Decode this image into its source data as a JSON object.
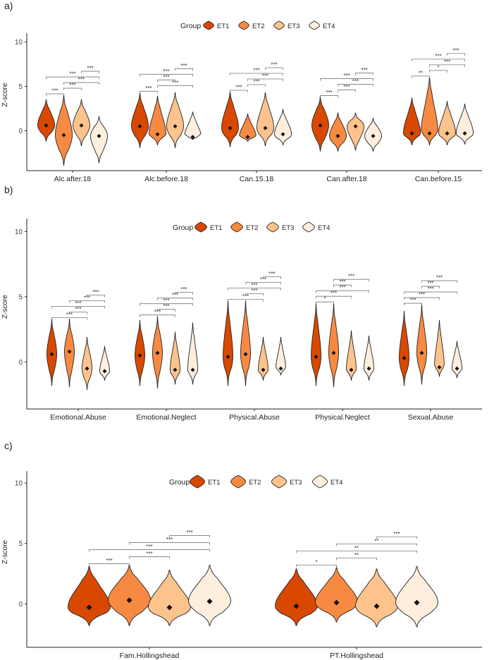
{
  "chart_data": [
    {
      "type": "violin",
      "panel": "a)",
      "legend_title": "Group",
      "groups": [
        "ET1",
        "ET2",
        "ET3",
        "ET4"
      ],
      "colors": {
        "ET1": "#d94801",
        "ET2": "#f78a42",
        "ET3": "#fdc38d",
        "ET4": "#fdeedd"
      },
      "ylabel": "Z-score",
      "yticks": [
        0,
        5,
        10
      ],
      "ylim": [
        -4.5,
        11
      ],
      "categories": [
        {
          "label": "Alc.after.18",
          "ranges": [
            [
              -1.2,
              3.5
            ],
            [
              -3.9,
              4.0
            ],
            [
              -1.7,
              3.5
            ],
            [
              -3.6,
              1.6
            ]
          ],
          "medians": [
            0.6,
            -0.5,
            0.6,
            -0.6
          ],
          "brackets": [
            {
              "a": 0,
              "b": 1,
              "sig": "***"
            },
            {
              "a": 1,
              "b": 2,
              "sig": "***"
            },
            {
              "a": 1,
              "b": 3,
              "sig": "***"
            },
            {
              "a": 0,
              "b": 3,
              "sig": "***"
            },
            {
              "a": 2,
              "b": 3,
              "sig": "***"
            }
          ]
        },
        {
          "label": "Alc.before.18",
          "ranges": [
            [
              -1.9,
              4.2
            ],
            [
              -1.6,
              3.9
            ],
            [
              -1.9,
              4.3
            ],
            [
              -1.0,
              2.1
            ]
          ],
          "medians": [
            0.5,
            -0.4,
            0.5,
            -0.7
          ],
          "brackets": [
            {
              "a": 0,
              "b": 1,
              "sig": "***"
            },
            {
              "a": 1,
              "b": 3,
              "sig": "***"
            },
            {
              "a": 1,
              "b": 2,
              "sig": "***"
            },
            {
              "a": 0,
              "b": 3,
              "sig": "***"
            },
            {
              "a": 2,
              "b": 3,
              "sig": "***"
            }
          ]
        },
        {
          "label": "Can.15.18",
          "ranges": [
            [
              -1.8,
              4.4
            ],
            [
              -1.2,
              1.9
            ],
            [
              -1.7,
              4.3
            ],
            [
              -1.6,
              2.4
            ]
          ],
          "medians": [
            0.3,
            -0.7,
            0.3,
            -0.4
          ],
          "brackets": [
            {
              "a": 0,
              "b": 1,
              "sig": "***"
            },
            {
              "a": 1,
              "b": 2,
              "sig": "***"
            },
            {
              "a": 1,
              "b": 3,
              "sig": "***"
            },
            {
              "a": 0,
              "b": 3,
              "sig": "***"
            },
            {
              "a": 2,
              "b": 3,
              "sig": "***"
            }
          ]
        },
        {
          "label": "Can.after.18",
          "ranges": [
            [
              -2.3,
              3.8
            ],
            [
              -2.3,
              2.0
            ],
            [
              -2.2,
              2.0
            ],
            [
              -2.3,
              1.4
            ]
          ],
          "medians": [
            0.6,
            -0.6,
            0.5,
            -0.6
          ],
          "brackets": [
            {
              "a": 0,
              "b": 1,
              "sig": "***"
            },
            {
              "a": 1,
              "b": 2,
              "sig": "***"
            },
            {
              "a": 1,
              "b": 3,
              "sig": "***"
            },
            {
              "a": 0,
              "b": 3,
              "sig": "***"
            },
            {
              "a": 2,
              "b": 3,
              "sig": "***"
            }
          ]
        },
        {
          "label": "Can.before.15",
          "ranges": [
            [
              -1.6,
              3.7
            ],
            [
              -1.6,
              6.0
            ],
            [
              -1.6,
              3.3
            ],
            [
              -1.5,
              3.0
            ]
          ],
          "medians": [
            -0.3,
            -0.3,
            -0.3,
            -0.3
          ],
          "brackets": [
            {
              "a": 0,
              "b": 1,
              "sig": "**"
            },
            {
              "a": 1,
              "b": 2,
              "sig": "*"
            },
            {
              "a": 1,
              "b": 3,
              "sig": "***"
            },
            {
              "a": 0,
              "b": 3,
              "sig": "***"
            },
            {
              "a": 2,
              "b": 3,
              "sig": "***"
            }
          ]
        }
      ]
    },
    {
      "type": "violin",
      "panel": "b)",
      "legend_title": "Group",
      "groups": [
        "ET1",
        "ET2",
        "ET3",
        "ET4"
      ],
      "colors": {
        "ET1": "#d94801",
        "ET2": "#f78a42",
        "ET3": "#fdc38d",
        "ET4": "#fdeedd"
      },
      "ylabel": "Z-score",
      "yticks": [
        0,
        5,
        10
      ],
      "ylim": [
        -3.6,
        11
      ],
      "categories": [
        {
          "label": "Emotional.Abuse",
          "ranges": [
            [
              -1.8,
              3.3
            ],
            [
              -1.9,
              3.3
            ],
            [
              -2.1,
              1.9
            ],
            [
              -1.4,
              1.2
            ]
          ],
          "medians": [
            0.6,
            0.8,
            -0.5,
            -0.7
          ],
          "brackets": [
            {
              "a": 0,
              "b": 2,
              "sig": "***"
            },
            {
              "a": 1,
              "b": 2,
              "sig": "***"
            },
            {
              "a": 0,
              "b": 3,
              "sig": "***"
            },
            {
              "a": 1,
              "b": 3,
              "sig": "***"
            },
            {
              "a": 2,
              "b": 3,
              "sig": "***"
            }
          ]
        },
        {
          "label": "Emotional.Neglect",
          "ranges": [
            [
              -1.8,
              3.2
            ],
            [
              -2.0,
              3.5
            ],
            [
              -1.7,
              2.3
            ],
            [
              -1.7,
              3.0
            ]
          ],
          "medians": [
            0.5,
            0.7,
            -0.6,
            -0.6
          ],
          "brackets": [
            {
              "a": 0,
              "b": 2,
              "sig": "***"
            },
            {
              "a": 1,
              "b": 2,
              "sig": "***"
            },
            {
              "a": 0,
              "b": 3,
              "sig": "***"
            },
            {
              "a": 1,
              "b": 3,
              "sig": "***"
            },
            {
              "a": 2,
              "b": 3,
              "sig": "***"
            }
          ]
        },
        {
          "label": "Physical.Abuse",
          "ranges": [
            [
              -1.8,
              4.7
            ],
            [
              -1.8,
              4.7
            ],
            [
              -1.4,
              1.9
            ],
            [
              -1.0,
              1.9
            ]
          ],
          "medians": [
            0.4,
            0.6,
            -0.6,
            -0.5
          ],
          "brackets": [
            {
              "a": 0,
              "b": 2,
              "sig": "***"
            },
            {
              "a": 1,
              "b": 2,
              "sig": "***"
            },
            {
              "a": 0,
              "b": 3,
              "sig": "***"
            },
            {
              "a": 1,
              "b": 3,
              "sig": "***"
            },
            {
              "a": 2,
              "b": 3,
              "sig": "***"
            }
          ]
        },
        {
          "label": "Physical.Neglect",
          "ranges": [
            [
              -1.8,
              4.5
            ],
            [
              -1.9,
              4.5
            ],
            [
              -1.4,
              2.4
            ],
            [
              -1.4,
              2.0
            ]
          ],
          "medians": [
            0.4,
            0.7,
            -0.6,
            -0.5
          ],
          "brackets": [
            {
              "a": 0,
              "b": 1,
              "sig": "*"
            },
            {
              "a": 0,
              "b": 2,
              "sig": "***"
            },
            {
              "a": 0,
              "b": 3,
              "sig": "***"
            },
            {
              "a": 1,
              "b": 2,
              "sig": "***"
            },
            {
              "a": 1,
              "b": 3,
              "sig": "***"
            }
          ]
        },
        {
          "label": "Sexual.Abuse",
          "ranges": [
            [
              -1.8,
              3.9
            ],
            [
              -1.7,
              4.4
            ],
            [
              -1.1,
              3.2
            ],
            [
              -1.2,
              1.6
            ]
          ],
          "medians": [
            0.3,
            0.7,
            -0.4,
            -0.5
          ],
          "brackets": [
            {
              "a": 0,
              "b": 1,
              "sig": "***"
            },
            {
              "a": 0,
              "b": 2,
              "sig": "***"
            },
            {
              "a": 0,
              "b": 3,
              "sig": "***"
            },
            {
              "a": 1,
              "b": 2,
              "sig": "***"
            },
            {
              "a": 1,
              "b": 3,
              "sig": "***"
            }
          ]
        }
      ]
    },
    {
      "type": "violin",
      "panel": "c)",
      "legend_title": "Group",
      "groups": [
        "ET1",
        "ET2",
        "ET3",
        "ET4"
      ],
      "colors": {
        "ET1": "#d94801",
        "ET2": "#f78a42",
        "ET3": "#fdc38d",
        "ET4": "#fdeedd"
      },
      "ylabel": "Z-score",
      "yticks": [
        0,
        5,
        10
      ],
      "ylim": [
        -3.6,
        11
      ],
      "categories": [
        {
          "label": "Fam.Hollingshead",
          "ranges": [
            [
              -1.8,
              3.1
            ],
            [
              -1.8,
              3.2
            ],
            [
              -1.8,
              2.8
            ],
            [
              -1.8,
              3.2
            ]
          ],
          "medians": [
            -0.3,
            0.3,
            -0.3,
            0.2
          ],
          "brackets": [
            {
              "a": 0,
              "b": 1,
              "sig": "***"
            },
            {
              "a": 1,
              "b": 2,
              "sig": "***"
            },
            {
              "a": 0,
              "b": 3,
              "sig": "***"
            },
            {
              "a": 1,
              "b": 3,
              "sig": "***"
            },
            {
              "a": 2,
              "b": 3,
              "sig": "***"
            }
          ]
        },
        {
          "label": "PT.Hollingshead",
          "ranges": [
            [
              -1.8,
              2.9
            ],
            [
              -1.5,
              3.0
            ],
            [
              -1.9,
              2.9
            ],
            [
              -1.9,
              3.1
            ]
          ],
          "medians": [
            -0.2,
            0.1,
            -0.2,
            0.1
          ],
          "brackets": [
            {
              "a": 0,
              "b": 1,
              "sig": "*"
            },
            {
              "a": 1,
              "b": 2,
              "sig": "**"
            },
            {
              "a": 0,
              "b": 3,
              "sig": "**"
            },
            {
              "a": 1,
              "b": 3,
              "sig": "**"
            },
            {
              "a": 2,
              "b": 3,
              "sig": "***"
            }
          ]
        }
      ]
    }
  ]
}
